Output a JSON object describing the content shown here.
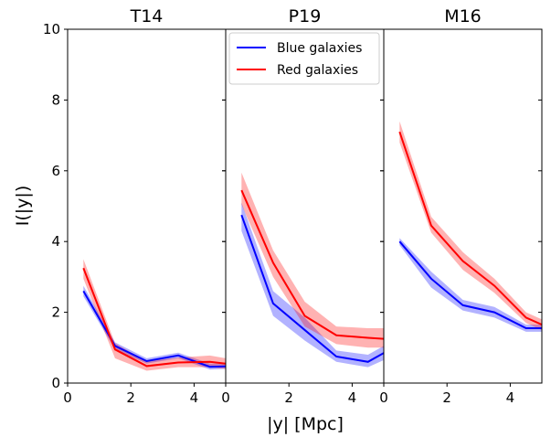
{
  "figure": {
    "xlabel": "|y| [Mpc]",
    "ylabel": "I(|y|)"
  },
  "legend": {
    "placement": "top-right of middle panel",
    "entries": [
      {
        "label": "Blue galaxies",
        "color": "#0000ff"
      },
      {
        "label": "Red galaxies",
        "color": "#ff0000"
      }
    ]
  },
  "chart_data": [
    {
      "type": "line",
      "title": "T14",
      "xlim": [
        0,
        5
      ],
      "ylim": [
        0,
        10
      ],
      "xticks": [
        "0",
        "2",
        "4"
      ],
      "yticks": [
        "0",
        "2",
        "4",
        "6",
        "8",
        "10"
      ],
      "series": [
        {
          "name": "Blue galaxies",
          "color": "#0000ff",
          "x": [
            0.5,
            1.5,
            2.5,
            3.5,
            4.5,
            5.0
          ],
          "y": [
            2.6,
            1.05,
            0.62,
            0.78,
            0.46,
            0.47
          ],
          "lower": [
            2.45,
            0.95,
            0.55,
            0.7,
            0.38,
            0.4
          ],
          "upper": [
            2.75,
            1.15,
            0.7,
            0.86,
            0.55,
            0.55
          ]
        },
        {
          "name": "Red galaxies",
          "color": "#ff0000",
          "x": [
            0.5,
            1.5,
            2.5,
            3.5,
            4.5,
            5.0
          ],
          "y": [
            3.25,
            0.95,
            0.48,
            0.58,
            0.6,
            0.55
          ],
          "lower": [
            2.95,
            0.7,
            0.35,
            0.45,
            0.45,
            0.4
          ],
          "upper": [
            3.5,
            1.12,
            0.62,
            0.72,
            0.78,
            0.7
          ]
        }
      ]
    },
    {
      "type": "line",
      "title": "P19",
      "xlim": [
        0,
        5
      ],
      "ylim": [
        0,
        10
      ],
      "xticks": [
        "0",
        "2",
        "4"
      ],
      "yticks": [],
      "series": [
        {
          "name": "Blue galaxies",
          "color": "#0000ff",
          "x": [
            0.5,
            1.5,
            2.5,
            3.5,
            4.5,
            5.0
          ],
          "y": [
            4.75,
            2.25,
            1.5,
            0.75,
            0.6,
            0.85
          ],
          "lower": [
            4.3,
            1.9,
            1.2,
            0.6,
            0.45,
            0.65
          ],
          "upper": [
            5.1,
            2.6,
            1.85,
            0.92,
            0.8,
            1.05
          ]
        },
        {
          "name": "Red galaxies",
          "color": "#ff0000",
          "x": [
            0.5,
            1.5,
            2.5,
            3.5,
            4.5,
            5.0
          ],
          "y": [
            5.45,
            3.4,
            1.9,
            1.35,
            1.28,
            1.25
          ],
          "lower": [
            5.05,
            3.0,
            1.6,
            1.1,
            1.0,
            1.0
          ],
          "upper": [
            5.95,
            3.75,
            2.3,
            1.6,
            1.55,
            1.55
          ]
        }
      ]
    },
    {
      "type": "line",
      "title": "M16",
      "xlim": [
        0,
        5
      ],
      "ylim": [
        0,
        10
      ],
      "xticks": [
        "0",
        "2",
        "4"
      ],
      "yticks": [],
      "series": [
        {
          "name": "Blue galaxies",
          "color": "#0000ff",
          "x": [
            0.5,
            1.5,
            2.5,
            3.5,
            4.5,
            5.0
          ],
          "y": [
            4.0,
            2.95,
            2.2,
            2.0,
            1.55,
            1.55
          ],
          "lower": [
            3.9,
            2.7,
            2.05,
            1.85,
            1.45,
            1.45
          ],
          "upper": [
            4.1,
            3.15,
            2.35,
            2.15,
            1.65,
            1.65
          ]
        },
        {
          "name": "Red galaxies",
          "color": "#ff0000",
          "x": [
            0.5,
            1.5,
            2.5,
            3.5,
            4.5,
            5.0
          ],
          "y": [
            7.1,
            4.45,
            3.45,
            2.75,
            1.85,
            1.65
          ],
          "lower": [
            6.8,
            4.25,
            3.2,
            2.55,
            1.7,
            1.5
          ],
          "upper": [
            7.4,
            4.7,
            3.7,
            2.95,
            2.0,
            1.8
          ]
        }
      ]
    }
  ]
}
